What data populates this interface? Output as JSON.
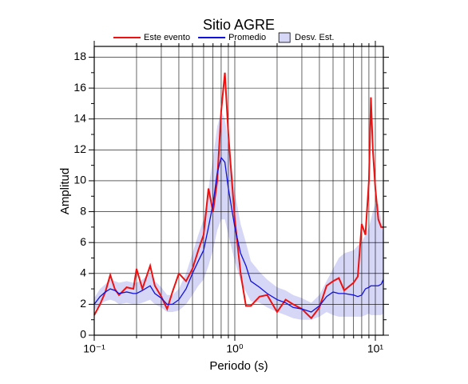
{
  "chart_data": {
    "type": "line",
    "title": "Sitio AGRE",
    "xlabel": "Periodo (s)",
    "ylabel": "Amplitud",
    "xscale": "log",
    "grid": true,
    "legend": "top",
    "xlim": [
      0.1,
      11.4
    ],
    "ylim": [
      0,
      18.7
    ],
    "xticks": [
      {
        "value": 0.1,
        "label": "10⁻¹"
      },
      {
        "value": 1,
        "label": "10⁰"
      },
      {
        "value": 10,
        "label": "10¹"
      }
    ],
    "yticks": [
      0,
      2,
      4,
      6,
      8,
      10,
      12,
      14,
      16,
      18
    ],
    "x": [
      0.1,
      0.11,
      0.12,
      0.13,
      0.14,
      0.15,
      0.17,
      0.19,
      0.2,
      0.22,
      0.25,
      0.27,
      0.3,
      0.33,
      0.36,
      0.4,
      0.45,
      0.5,
      0.55,
      0.6,
      0.65,
      0.7,
      0.75,
      0.8,
      0.85,
      0.9,
      1.0,
      1.1,
      1.2,
      1.3,
      1.5,
      1.7,
      2.0,
      2.3,
      2.6,
      3.0,
      3.5,
      4.0,
      4.5,
      5.0,
      5.5,
      6.0,
      7.0,
      7.5,
      8.0,
      8.5,
      9.0,
      9.3,
      9.6,
      10.0,
      10.5,
      11.0,
      11.4
    ],
    "band": {
      "name": "Desv. Est.",
      "color": "#d6d6f7",
      "lower": [
        1.6,
        2.0,
        2.2,
        2.3,
        2.2,
        2.0,
        2.1,
        2.0,
        2.0,
        2.1,
        2.3,
        2.0,
        1.8,
        1.5,
        1.5,
        1.6,
        2.0,
        2.6,
        3.2,
        3.6,
        4.5,
        5.5,
        6.8,
        7.5,
        7.5,
        6.5,
        4.8,
        3.5,
        2.8,
        2.2,
        2.1,
        1.8,
        1.5,
        1.3,
        1.1,
        1.0,
        1.0,
        1.2,
        1.5,
        1.3,
        1.2,
        1.2,
        1.2,
        1.2,
        1.2,
        1.3,
        1.4,
        1.3,
        1.3,
        1.3,
        1.3,
        1.3,
        1.4
      ],
      "upper": [
        2.4,
        3.0,
        3.3,
        3.6,
        3.5,
        3.4,
        3.5,
        3.4,
        3.4,
        3.6,
        4.0,
        3.5,
        3.1,
        2.6,
        2.6,
        3.0,
        4.0,
        5.3,
        6.5,
        7.5,
        9.5,
        11.5,
        13.5,
        14.5,
        14.0,
        12.5,
        9.3,
        7.2,
        6.0,
        4.8,
        4.1,
        3.6,
        3.1,
        2.9,
        2.6,
        2.4,
        2.1,
        2.6,
        3.5,
        4.3,
        5.0,
        5.3,
        5.5,
        5.8,
        6.0,
        6.5,
        7.0,
        7.5,
        8.0,
        8.5,
        8.5,
        7.5,
        6.5
      ]
    },
    "series": [
      {
        "name": "Este evento",
        "color": "#ee1111",
        "values": [
          1.3,
          2.0,
          2.8,
          3.9,
          3.0,
          2.6,
          3.1,
          3.0,
          4.3,
          3.0,
          4.5,
          3.2,
          2.5,
          1.7,
          2.8,
          4.0,
          3.5,
          4.3,
          5.5,
          6.5,
          9.5,
          8.0,
          10,
          14.5,
          17.0,
          13,
          7.5,
          4.0,
          1.9,
          1.9,
          2.5,
          2.6,
          1.5,
          2.3,
          2.0,
          1.7,
          1.1,
          1.8,
          3.2,
          3.5,
          3.7,
          2.9,
          3.4,
          3.8,
          7.2,
          6.5,
          10,
          15.4,
          12,
          9.5,
          7.5,
          7.0,
          7.0
        ]
      },
      {
        "name": "Promedio",
        "color": "#1111dd",
        "values": [
          2.0,
          2.5,
          2.8,
          3.0,
          2.9,
          2.7,
          2.8,
          2.7,
          2.7,
          2.9,
          3.2,
          2.7,
          2.4,
          2.0,
          2.0,
          2.3,
          3.0,
          4.0,
          4.8,
          5.5,
          7.0,
          8.5,
          10.5,
          11.5,
          11.2,
          9.5,
          7.0,
          5.3,
          4.5,
          3.5,
          3.1,
          2.7,
          2.3,
          2.1,
          1.8,
          1.7,
          1.5,
          1.9,
          2.5,
          2.8,
          2.7,
          2.7,
          2.6,
          2.5,
          2.6,
          3.0,
          3.1,
          3.2,
          3.2,
          3.2,
          3.2,
          3.3,
          3.6
        ]
      }
    ]
  }
}
